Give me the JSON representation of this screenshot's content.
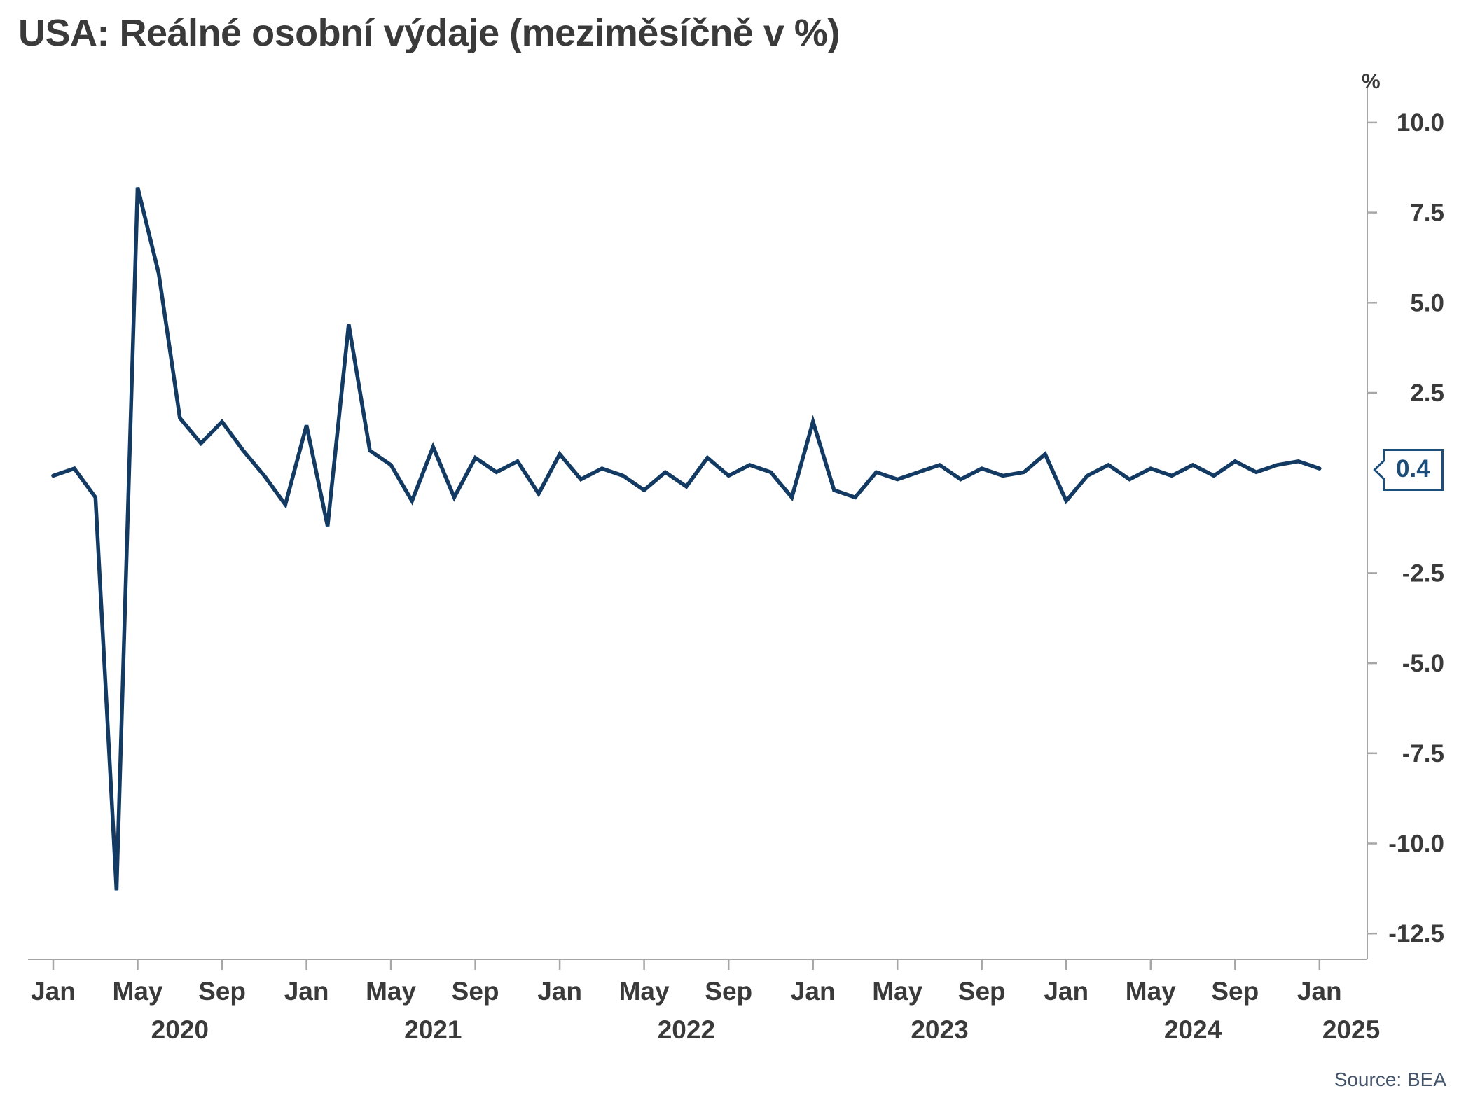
{
  "title": "USA: Reálné osobní výdaje (meziměsíčně v %)",
  "unit_label": "%",
  "callout": {
    "value": "0.4"
  },
  "source": "Source: BEA",
  "colors": {
    "line": "#123a63",
    "text": "#3a3a3a",
    "axis": "#a6a6a6",
    "callout": "#1d4e79",
    "source_text": "#44546a"
  },
  "chart_data": {
    "type": "line",
    "title": "USA: Reálné osobní výdaje (meziměsíčně v %)",
    "ylabel": "%",
    "frequency": "monthly",
    "x_start": "2020-01",
    "x_end": "2025-01",
    "ylim": [
      -13.2,
      10.6
    ],
    "grid": false,
    "legend": false,
    "y_ticks": [
      {
        "value": 10.0,
        "label": "10.0"
      },
      {
        "value": 7.5,
        "label": "7.5"
      },
      {
        "value": 5.0,
        "label": "5.0"
      },
      {
        "value": 2.5,
        "label": "2.5"
      },
      {
        "value": -2.5,
        "label": "-2.5"
      },
      {
        "value": -5.0,
        "label": "-5.0"
      },
      {
        "value": -7.5,
        "label": "-7.5"
      },
      {
        "value": -10.0,
        "label": "-10.0"
      },
      {
        "value": -12.5,
        "label": "-12.5"
      }
    ],
    "x_ticks": [
      {
        "month_index": 0,
        "label": "Jan"
      },
      {
        "month_index": 4,
        "label": "May"
      },
      {
        "month_index": 8,
        "label": "Sep"
      },
      {
        "month_index": 12,
        "label": "Jan"
      },
      {
        "month_index": 16,
        "label": "May"
      },
      {
        "month_index": 20,
        "label": "Sep"
      },
      {
        "month_index": 24,
        "label": "Jan"
      },
      {
        "month_index": 28,
        "label": "May"
      },
      {
        "month_index": 32,
        "label": "Sep"
      },
      {
        "month_index": 36,
        "label": "Jan"
      },
      {
        "month_index": 40,
        "label": "May"
      },
      {
        "month_index": 44,
        "label": "Sep"
      },
      {
        "month_index": 48,
        "label": "Jan"
      },
      {
        "month_index": 52,
        "label": "May"
      },
      {
        "month_index": 56,
        "label": "Sep"
      },
      {
        "month_index": 60,
        "label": "Jan"
      }
    ],
    "year_labels": [
      {
        "label": "2020",
        "month_index": 6
      },
      {
        "label": "2021",
        "month_index": 18
      },
      {
        "label": "2022",
        "month_index": 30
      },
      {
        "label": "2023",
        "month_index": 42
      },
      {
        "label": "2024",
        "month_index": 54
      },
      {
        "label": "2025",
        "month_index": 61.5
      }
    ],
    "series": [
      {
        "name": "Reálné osobní výdaje (meziměsíčně v %)",
        "values": [
          0.2,
          0.4,
          -0.4,
          -11.3,
          8.2,
          5.8,
          1.8,
          1.1,
          1.7,
          0.9,
          0.2,
          -0.6,
          1.6,
          -1.2,
          4.4,
          0.9,
          0.5,
          -0.5,
          1.0,
          -0.4,
          0.7,
          0.3,
          0.6,
          -0.3,
          0.8,
          0.1,
          0.4,
          0.2,
          -0.2,
          0.3,
          -0.1,
          0.7,
          0.2,
          0.5,
          0.3,
          -0.4,
          1.7,
          -0.2,
          -0.4,
          0.3,
          0.1,
          0.3,
          0.5,
          0.1,
          0.4,
          0.2,
          0.3,
          0.8,
          -0.5,
          0.2,
          0.5,
          0.1,
          0.4,
          0.2,
          0.5,
          0.2,
          0.6,
          0.3,
          0.5,
          0.6,
          0.4
        ]
      }
    ],
    "last_value": 0.4
  }
}
